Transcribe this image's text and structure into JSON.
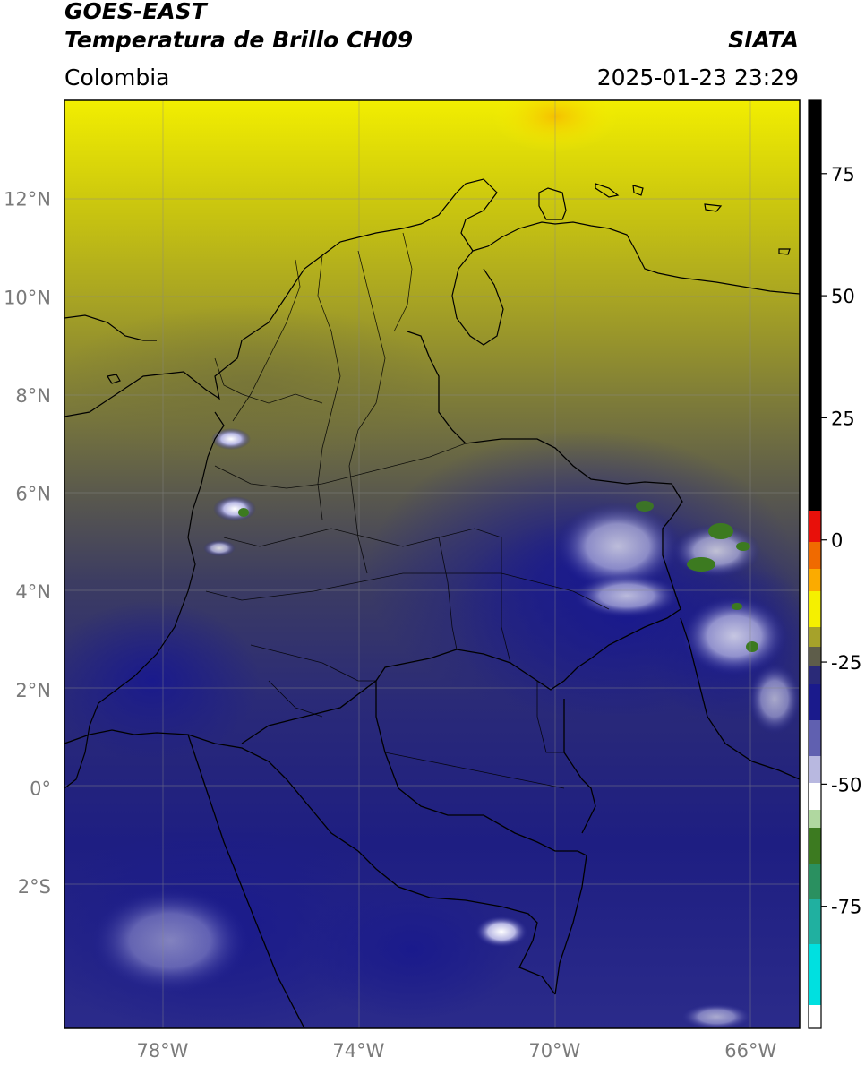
{
  "header": {
    "satellite": "GOES-EAST",
    "product": "Temperatura de Brillo CH09",
    "region": "Colombia",
    "source": "SIATA",
    "timestamp": "2025-01-23 23:29"
  },
  "map": {
    "lat_ticks": [
      "12°N",
      "10°N",
      "8°N",
      "6°N",
      "4°N",
      "2°N",
      "0°",
      "2°S"
    ],
    "lon_ticks": [
      "78°W",
      "74°W",
      "70°W",
      "66°W"
    ],
    "lat_range": [
      -4.9,
      14.0
    ],
    "lon_range": [
      -80.0,
      -65.0
    ]
  },
  "colorbar": {
    "ticks": [
      "75",
      "50",
      "25",
      "0",
      "-25",
      "-50",
      "-75"
    ],
    "tick_values": [
      75,
      50,
      25,
      0,
      -25,
      -50,
      -75
    ],
    "range": [
      -100,
      90
    ],
    "colors": {
      "hot": "#000000",
      "red": "#e8100a",
      "orange": "#ff8c00",
      "yellow": "#f5f000",
      "olive": "#85852a",
      "gray": "#4a4a50",
      "navy": "#1a1a8c",
      "lavender": "#c8c8e8",
      "white": "#ffffff",
      "green": "#3c7a20",
      "teal": "#20c0a0",
      "cyan": "#00e0e0"
    }
  }
}
